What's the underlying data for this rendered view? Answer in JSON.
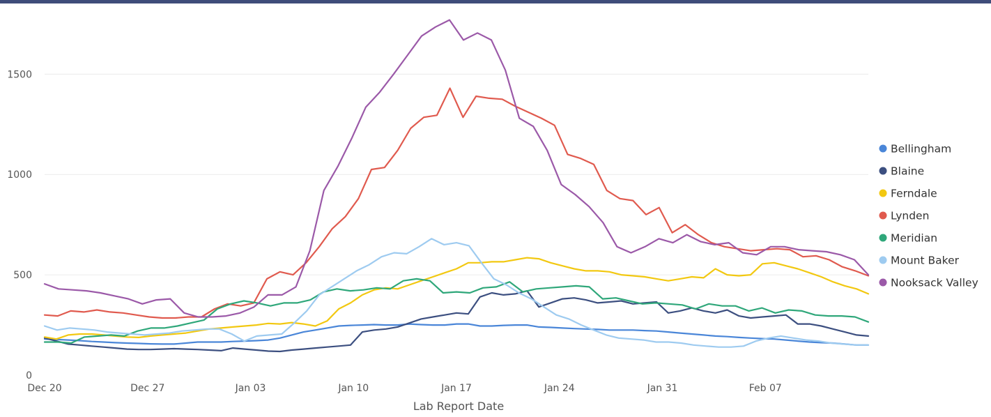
{
  "chart_data": {
    "type": "line",
    "title": "",
    "xlabel": "Lab Report Date",
    "ylabel": "",
    "x_ticks": [
      "Dec 20",
      "Dec 27",
      "Jan 03",
      "Jan 10",
      "Jan 17",
      "Jan 24",
      "Jan 31",
      "Feb 07"
    ],
    "x_range": [
      "2021-12-20",
      "2022-02-14"
    ],
    "y_ticks": [
      0,
      500,
      1000,
      1500
    ],
    "ylim": [
      0,
      1800
    ],
    "grid": true,
    "legend_position": "right",
    "x_start_date": "2021-12-20",
    "series": [
      {
        "name": "Bellingham",
        "color": "#4a86d8",
        "values": [
          180,
          178,
          175,
          172,
          168,
          165,
          162,
          160,
          158,
          156,
          155,
          155,
          160,
          165,
          165,
          165,
          168,
          170,
          172,
          175,
          185,
          200,
          215,
          225,
          235,
          245,
          248,
          250,
          252,
          250,
          250,
          255,
          252,
          250,
          250,
          255,
          255,
          245,
          245,
          248,
          250,
          250,
          240,
          238,
          235,
          232,
          230,
          228,
          225,
          225,
          225,
          222,
          220,
          215,
          210,
          205,
          200,
          195,
          192,
          188,
          185,
          182,
          180,
          175,
          170,
          165,
          162,
          160,
          155,
          150,
          150
        ]
      },
      {
        "name": "Blaine",
        "color": "#3c4f80",
        "values": [
          185,
          170,
          155,
          150,
          145,
          140,
          135,
          130,
          128,
          128,
          130,
          132,
          130,
          128,
          125,
          122,
          135,
          130,
          125,
          120,
          118,
          125,
          130,
          135,
          140,
          145,
          150,
          215,
          225,
          230,
          240,
          260,
          280,
          290,
          300,
          310,
          305,
          390,
          410,
          400,
          405,
          420,
          340,
          360,
          380,
          385,
          375,
          360,
          365,
          370,
          355,
          360,
          365,
          310,
          320,
          335,
          320,
          310,
          325,
          295,
          285,
          290,
          295,
          300,
          255,
          255,
          245,
          230,
          215,
          200,
          195
        ]
      },
      {
        "name": "Ferndale",
        "color": "#f2c811",
        "values": [
          190,
          180,
          200,
          205,
          205,
          200,
          195,
          190,
          188,
          195,
          200,
          205,
          210,
          220,
          230,
          235,
          240,
          245,
          250,
          258,
          255,
          262,
          255,
          245,
          270,
          330,
          360,
          400,
          425,
          435,
          430,
          450,
          470,
          490,
          510,
          530,
          560,
          560,
          565,
          565,
          575,
          585,
          580,
          560,
          545,
          530,
          520,
          520,
          515,
          500,
          495,
          490,
          480,
          470,
          480,
          490,
          485,
          530,
          500,
          495,
          500,
          555,
          560,
          545,
          530,
          510,
          490,
          465,
          445,
          430,
          405
        ]
      },
      {
        "name": "Lynden",
        "color": "#e05a4e",
        "values": [
          300,
          295,
          320,
          315,
          325,
          315,
          310,
          300,
          290,
          285,
          285,
          290,
          290,
          330,
          355,
          345,
          360,
          480,
          515,
          500,
          560,
          640,
          730,
          790,
          880,
          1025,
          1035,
          1120,
          1230,
          1285,
          1295,
          1430,
          1285,
          1390,
          1380,
          1375,
          1340,
          1310,
          1280,
          1245,
          1100,
          1080,
          1050,
          920,
          880,
          870,
          800,
          835,
          710,
          750,
          700,
          660,
          640,
          630,
          620,
          625,
          630,
          625,
          590,
          595,
          575,
          540,
          520,
          495
        ]
      },
      {
        "name": "Meridian",
        "color": "#2fa77a",
        "values": [
          165,
          165,
          160,
          190,
          195,
          200,
          195,
          220,
          235,
          235,
          245,
          260,
          275,
          330,
          355,
          370,
          360,
          345,
          360,
          360,
          375,
          415,
          430,
          420,
          425,
          435,
          430,
          470,
          480,
          470,
          410,
          415,
          410,
          435,
          440,
          465,
          415,
          430,
          435,
          440,
          445,
          440,
          380,
          385,
          370,
          355,
          360,
          355,
          350,
          330,
          355,
          345,
          345,
          320,
          335,
          310,
          325,
          320,
          300,
          295,
          295,
          290,
          265
        ]
      },
      {
        "name": "Mount Baker",
        "color": "#9ecbf0",
        "values": [
          245,
          225,
          235,
          230,
          225,
          215,
          210,
          205,
          200,
          205,
          210,
          220,
          225,
          230,
          230,
          205,
          170,
          195,
          200,
          205,
          260,
          320,
          400,
          440,
          480,
          520,
          550,
          590,
          610,
          605,
          640,
          680,
          650,
          660,
          645,
          560,
          480,
          450,
          410,
          380,
          340,
          300,
          280,
          250,
          225,
          200,
          185,
          180,
          175,
          165,
          165,
          160,
          150,
          145,
          140,
          140,
          145,
          170,
          185,
          195,
          185,
          175,
          170,
          160,
          155,
          150,
          150
        ]
      },
      {
        "name": "Nooksack Valley",
        "color": "#9b59a8",
        "values": [
          455,
          430,
          425,
          420,
          410,
          395,
          380,
          355,
          375,
          380,
          310,
          290,
          290,
          295,
          310,
          340,
          400,
          400,
          440,
          620,
          920,
          1040,
          1180,
          1335,
          1410,
          1500,
          1595,
          1690,
          1735,
          1770,
          1670,
          1705,
          1670,
          1520,
          1280,
          1240,
          1120,
          950,
          900,
          840,
          760,
          640,
          610,
          640,
          680,
          660,
          700,
          665,
          650,
          660,
          610,
          600,
          640,
          640,
          625,
          620,
          615,
          600,
          575,
          500
        ]
      }
    ]
  }
}
